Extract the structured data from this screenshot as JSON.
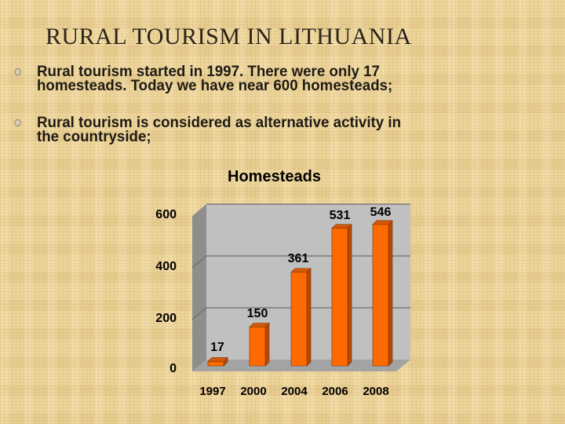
{
  "slide": {
    "title": "RURAL TOURISM IN LITHUANIA",
    "bullets": [
      {
        "line1": "Rural tourism started in 1997. There were only 17",
        "line2": "homesteads. Today we have near 600 homesteads;"
      },
      {
        "line1": "Rural tourism is considered as alternative activity in",
        "line2": "the countryside;"
      }
    ],
    "bullet_icon": "hollow-circle-bullet"
  },
  "chart_data": {
    "type": "bar",
    "style": "3d-column",
    "title": "Homesteads",
    "categories": [
      "1997",
      "2000",
      "2004",
      "2006",
      "2008"
    ],
    "values": [
      17,
      150,
      361,
      531,
      546
    ],
    "data_labels": [
      "17",
      "150",
      "361",
      "531",
      "546"
    ],
    "xlabel": "",
    "ylabel": "",
    "yticks": [
      "0",
      "200",
      "400",
      "600"
    ],
    "ylim": [
      0,
      600
    ],
    "grid": true,
    "legend": "none",
    "colors": {
      "bar_front": "#ff6a00",
      "bar_side": "#b44a05",
      "bar_top": "#d45a08",
      "wall": "#c0c0c0",
      "side_wall": "#8e8e8e",
      "floor": "#a0a0a0"
    }
  }
}
